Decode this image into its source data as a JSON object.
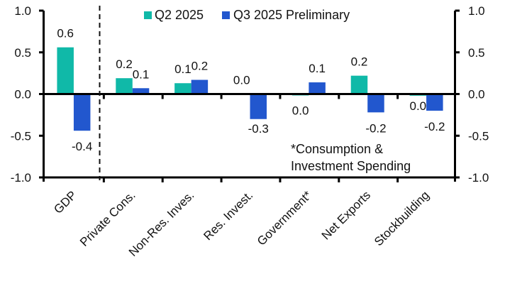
{
  "chart_data": {
    "type": "bar",
    "title": "",
    "xlabel": "",
    "ylabel": "",
    "ylim": [
      -1.0,
      1.0
    ],
    "y_ticks": [
      1.0,
      0.5,
      0.0,
      -0.5,
      -1.0
    ],
    "y_tick_labels": [
      "1.0",
      "0.5",
      "0.0",
      "-0.5",
      "-1.0"
    ],
    "secondary_y_axis": {
      "ylim": [
        -1.0,
        1.0
      ],
      "tick_labels": [
        "1.0",
        "0.5",
        "0.0",
        "-0.5",
        "-1.0"
      ]
    },
    "grid": false,
    "legend": {
      "position": "top",
      "entries": [
        "Q2 2025",
        "Q3 2025 Preliminary"
      ]
    },
    "categories": [
      "GDP",
      "Private Cons.",
      "Non-Res. Inves.",
      "Res. Invest.",
      "Government*",
      "Net Exports",
      "Stockbuilding"
    ],
    "series": [
      {
        "name": "Q2 2025",
        "color": "#10B9A8",
        "values": [
          0.56,
          0.19,
          0.13,
          0.0,
          -0.01,
          0.22,
          -0.02
        ],
        "data_labels": [
          "0.6",
          "0.2",
          "0.1",
          "0.0",
          "0.0",
          "0.2",
          "0.0"
        ]
      },
      {
        "name": "Q3 2025 Preliminary",
        "color": "#2257CE",
        "values": [
          -0.44,
          0.07,
          0.17,
          -0.3,
          0.14,
          -0.22,
          -0.2
        ],
        "data_labels": [
          "-0.4",
          "0.1",
          "0.2",
          "-0.3",
          "0.1",
          "-0.2",
          "-0.2"
        ]
      }
    ],
    "annotations": [
      "*Consumption &",
      "Investment Spending"
    ],
    "separator": {
      "style": "dashed",
      "after_category": "GDP"
    }
  }
}
